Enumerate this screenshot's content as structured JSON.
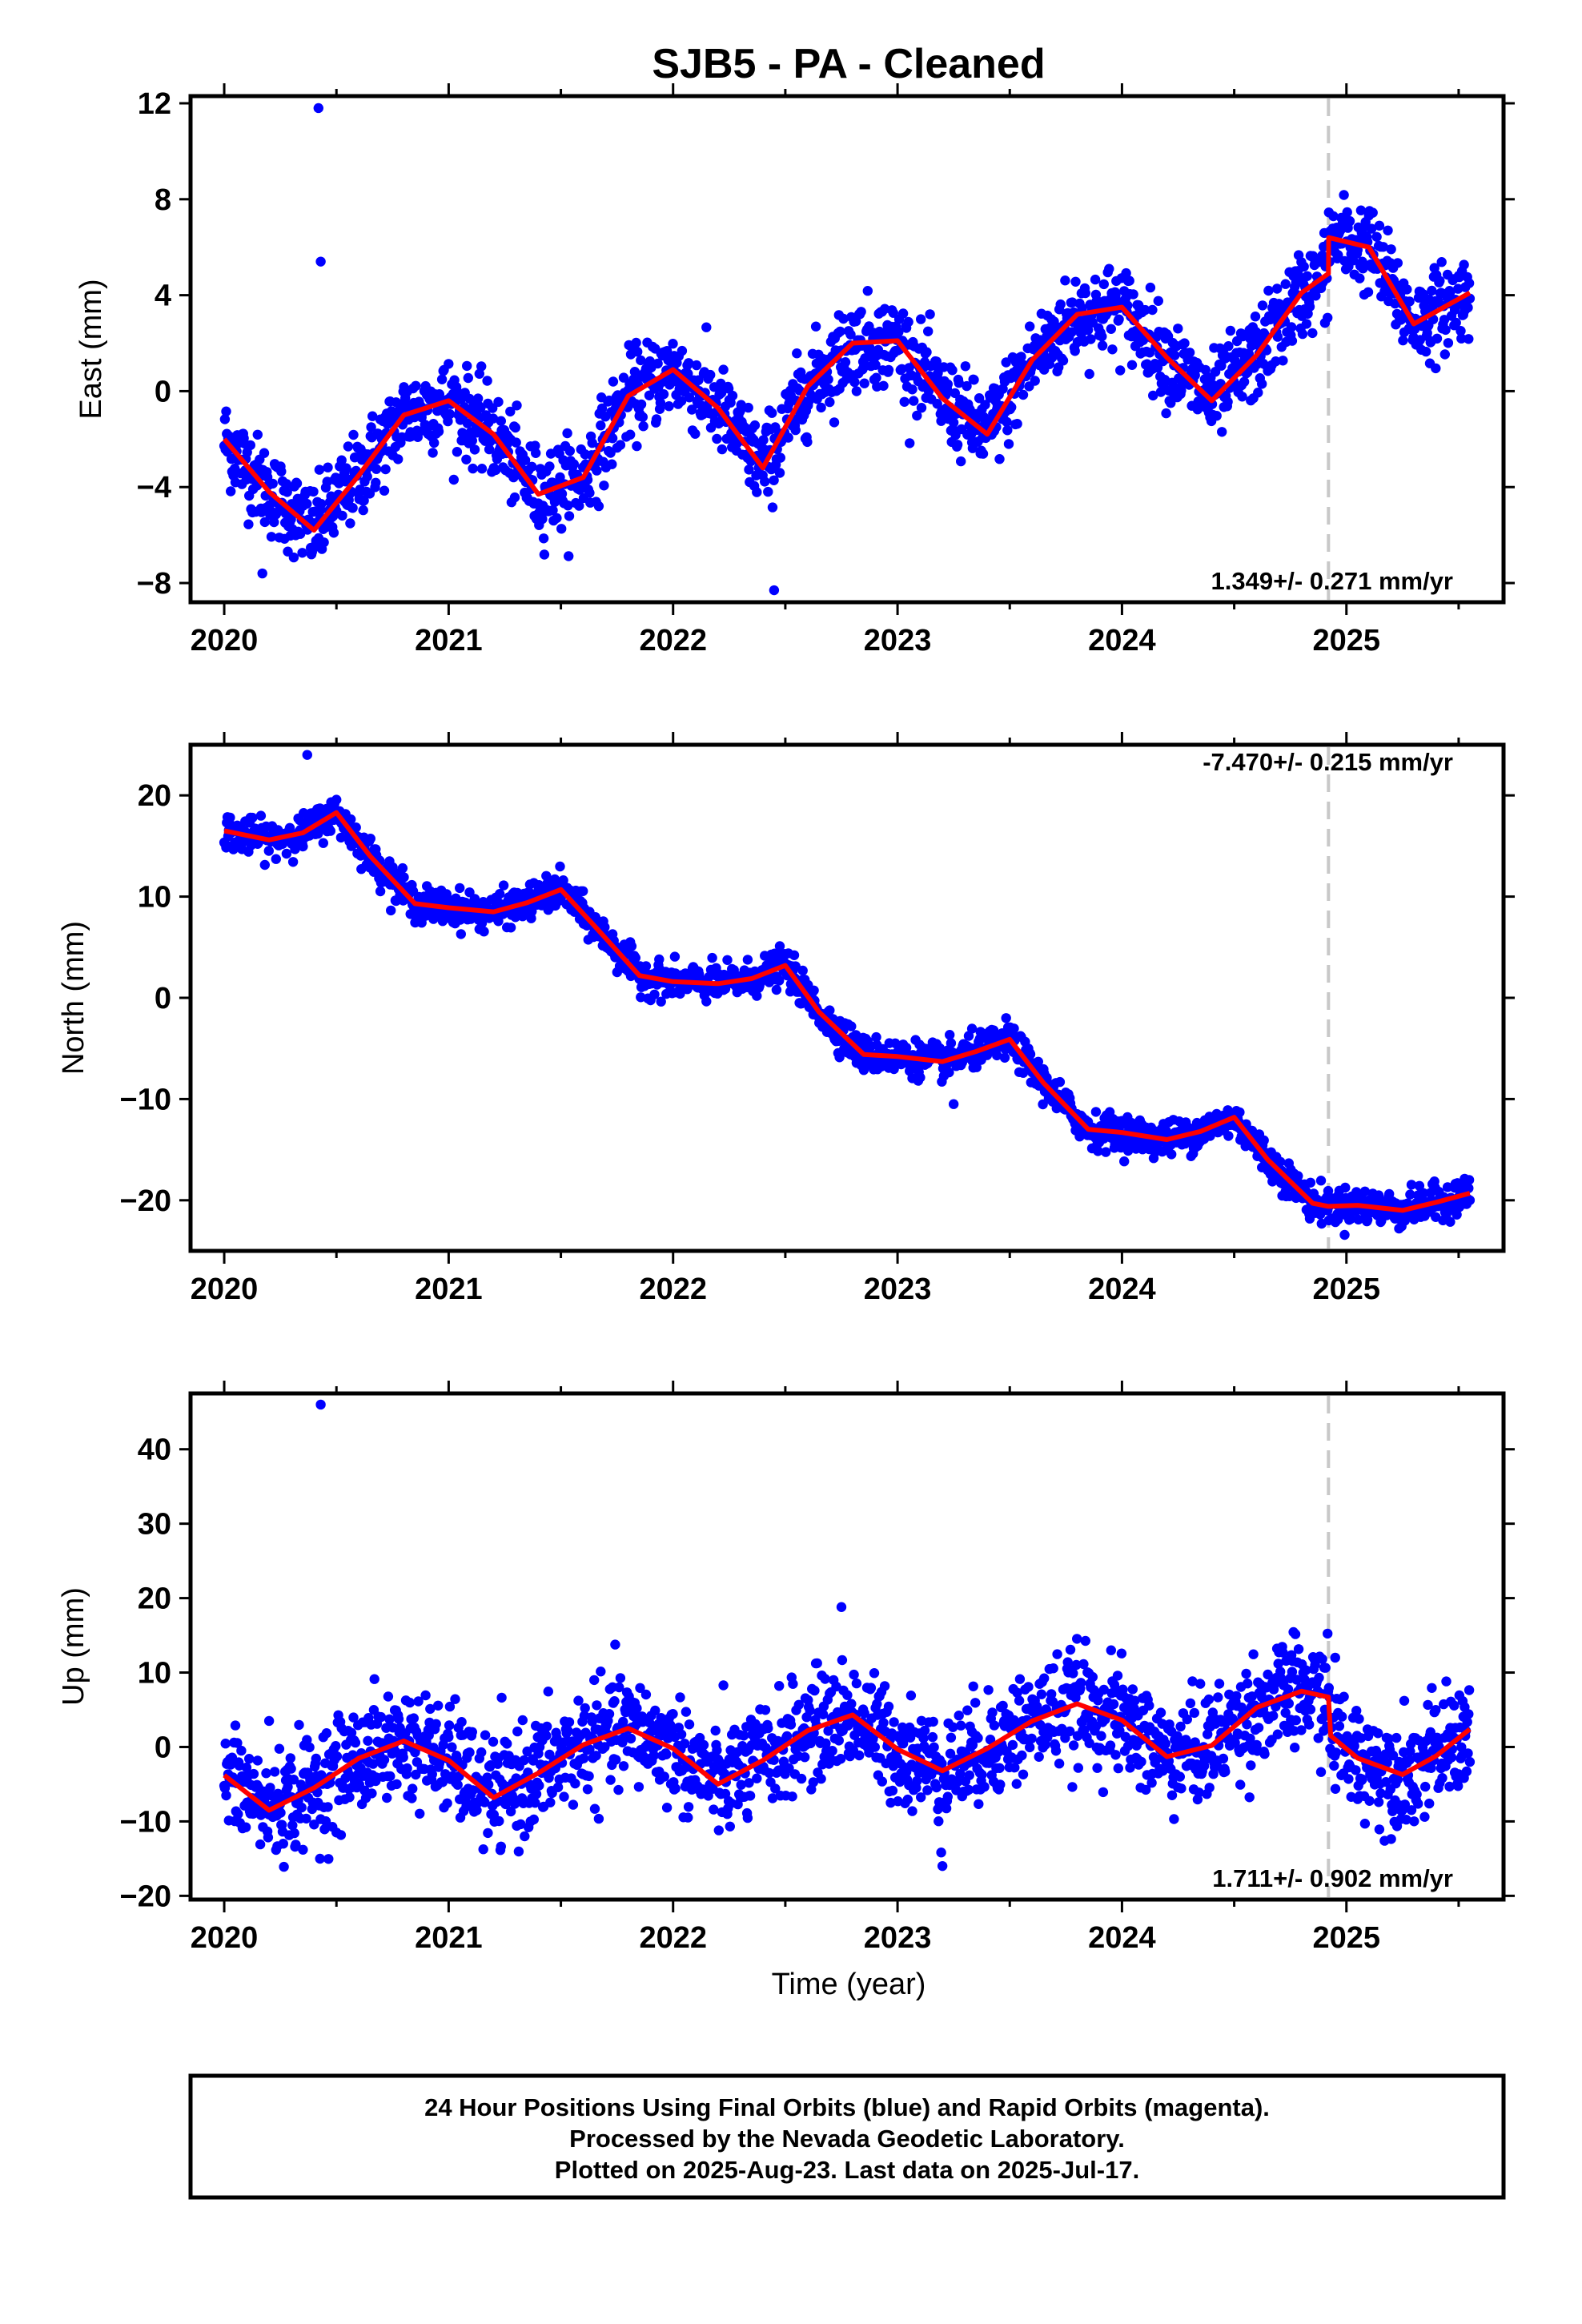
{
  "title": "SJB5  - PA - Cleaned",
  "x_axis_label": "Time (year)",
  "footer": {
    "line1": "24 Hour Positions Using Final Orbits (blue) and Rapid Orbits (magenta).",
    "line2": "Processed by the Nevada Geodetic Laboratory.",
    "line3": "Plotted on 2025-Aug-23. Last data on 2025-Jul-17."
  },
  "colors": {
    "points": "#0000ff",
    "model": "#ff0000",
    "event_line": "#c8c8c8"
  },
  "chart_data": [
    {
      "type": "scatter",
      "component": "east",
      "ylabel": "East (mm)",
      "xlim": [
        2019.85,
        2025.7
      ],
      "ylim": [
        -8.8,
        12.3
      ],
      "yticks": [
        -8,
        -4,
        0,
        4,
        8,
        12
      ],
      "xticks": [
        2020,
        2021,
        2022,
        2023,
        2024,
        2025
      ],
      "event_line_x": 2024.92,
      "rate_text": "1.349+/- 0.271 mm/yr",
      "rate_position": "bottom-right",
      "model": {
        "x": [
          2020.0,
          2020.2,
          2020.4,
          2020.6,
          2020.8,
          2021.0,
          2021.2,
          2021.4,
          2021.6,
          2021.8,
          2022.0,
          2022.2,
          2022.4,
          2022.6,
          2022.8,
          2023.0,
          2023.2,
          2023.4,
          2023.6,
          2023.8,
          2024.0,
          2024.2,
          2024.4,
          2024.6,
          2024.8,
          2024.92,
          2024.921,
          2025.1,
          2025.3,
          2025.55
        ],
        "y": [
          -2.0,
          -4.2,
          -5.8,
          -3.5,
          -1.0,
          -0.4,
          -1.8,
          -4.3,
          -3.6,
          -0.2,
          0.9,
          -0.7,
          -3.2,
          0.2,
          2.0,
          2.1,
          -0.3,
          -1.8,
          1.3,
          3.2,
          3.5,
          1.4,
          -0.4,
          1.5,
          4.1,
          4.9,
          6.4,
          6.0,
          2.8,
          4.1
        ]
      },
      "outliers": [
        {
          "x": 2020.42,
          "y": 11.8
        },
        {
          "x": 2020.43,
          "y": 5.4
        },
        {
          "x": 2022.45,
          "y": -8.3
        },
        {
          "x": 2020.17,
          "y": -7.6
        }
      ],
      "scatter_sd": 0.9
    },
    {
      "type": "scatter",
      "component": "north",
      "ylabel": "North (mm)",
      "xlim": [
        2019.85,
        2025.7
      ],
      "ylim": [
        -25,
        25
      ],
      "yticks": [
        -20,
        -10,
        0,
        10,
        20
      ],
      "xticks": [
        2020,
        2021,
        2022,
        2023,
        2024,
        2025
      ],
      "event_line_x": 2024.92,
      "rate_text": "-7.470+/- 0.215 mm/yr",
      "rate_position": "top-right",
      "model": {
        "x": [
          2020.0,
          2020.2,
          2020.35,
          2020.5,
          2020.65,
          2020.85,
          2021.0,
          2021.2,
          2021.35,
          2021.5,
          2021.65,
          2021.85,
          2022.0,
          2022.2,
          2022.35,
          2022.5,
          2022.65,
          2022.85,
          2023.0,
          2023.2,
          2023.35,
          2023.5,
          2023.65,
          2023.85,
          2024.0,
          2024.2,
          2024.35,
          2024.5,
          2024.65,
          2024.85,
          2024.92,
          2025.05,
          2025.25,
          2025.4,
          2025.55
        ],
        "y": [
          16.5,
          15.6,
          16.3,
          18.3,
          14.0,
          9.3,
          8.9,
          8.5,
          9.4,
          10.7,
          7.1,
          2.2,
          1.6,
          1.4,
          1.9,
          3.2,
          -1.4,
          -5.6,
          -5.8,
          -6.3,
          -5.3,
          -4.1,
          -8.4,
          -13.0,
          -13.3,
          -14.0,
          -13.2,
          -11.8,
          -16.0,
          -20.3,
          -20.6,
          -20.5,
          -21.0,
          -20.2,
          -19.3
        ]
      },
      "outliers": [
        {
          "x": 2020.37,
          "y": 24.0
        },
        {
          "x": 2023.25,
          "y": -10.5
        }
      ],
      "scatter_sd": 0.85
    },
    {
      "type": "scatter",
      "component": "up",
      "ylabel": "Up (mm)",
      "xlim": [
        2019.85,
        2025.7
      ],
      "ylim": [
        -20.5,
        47.5
      ],
      "yticks": [
        -20,
        -10,
        0,
        10,
        20,
        30,
        40
      ],
      "xticks": [
        2020,
        2021,
        2022,
        2023,
        2024,
        2025
      ],
      "event_line_x": 2024.92,
      "rate_text": "1.711+/- 0.902 mm/yr",
      "rate_position": "bottom-right",
      "model": {
        "x": [
          2020.0,
          2020.2,
          2020.4,
          2020.6,
          2020.8,
          2021.0,
          2021.2,
          2021.4,
          2021.6,
          2021.8,
          2022.0,
          2022.2,
          2022.4,
          2022.6,
          2022.8,
          2023.0,
          2023.2,
          2023.4,
          2023.6,
          2023.8,
          2024.0,
          2024.2,
          2024.4,
          2024.6,
          2024.8,
          2024.92,
          2024.93,
          2025.05,
          2025.25,
          2025.4,
          2025.55
        ],
        "y": [
          -3.8,
          -8.5,
          -5.5,
          -1.5,
          0.8,
          -1.8,
          -6.8,
          -3.5,
          0.3,
          2.5,
          -0.2,
          -5.0,
          -1.8,
          2.2,
          4.3,
          -0.3,
          -3.2,
          -0.2,
          3.5,
          5.8,
          3.6,
          -1.3,
          0.2,
          5.3,
          7.5,
          6.7,
          1.5,
          -1.5,
          -3.7,
          -1.2,
          2.4
        ]
      },
      "outliers": [
        {
          "x": 2020.43,
          "y": 46.0
        },
        {
          "x": 2022.75,
          "y": 18.8
        },
        {
          "x": 2023.2,
          "y": -16.0
        },
        {
          "x": 2024.95,
          "y": 12.0
        },
        {
          "x": 2020.2,
          "y": 3.5
        }
      ],
      "scatter_sd": 3.6
    }
  ]
}
